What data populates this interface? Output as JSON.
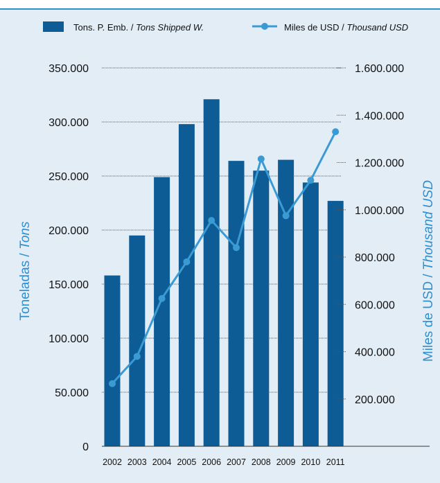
{
  "header": {
    "title_fragment": ""
  },
  "colors": {
    "bar": "#0d5c96",
    "line": "#3a9ad4",
    "axis_title": "#2e8fcf",
    "panel": "#e3edf6",
    "grid": "#555555",
    "text": "#111111"
  },
  "chart_data": {
    "type": "bar",
    "categories": [
      "2002",
      "2003",
      "2004",
      "2005",
      "2006",
      "2007",
      "2008",
      "2009",
      "2010",
      "2011"
    ],
    "series": [
      {
        "name": "Tons. P. Emb. / Tons Shipped W.",
        "name_main": "Tons. P. Emb. / ",
        "name_italic": "Tons Shipped W.",
        "type": "bar",
        "axis": "left",
        "values": [
          158000,
          195000,
          249000,
          298000,
          321000,
          264000,
          255000,
          265000,
          244000,
          227000
        ]
      },
      {
        "name": "Miles de USD / Thousand USD",
        "name_main": "Miles de USD / ",
        "name_italic": "Thousand USD",
        "type": "line",
        "axis": "right",
        "values": [
          265000,
          380000,
          625000,
          780000,
          955000,
          840000,
          1215000,
          975000,
          1125000,
          1330000
        ]
      }
    ],
    "left_axis": {
      "label_main": "Toneladas / ",
      "label_italic": "Tons",
      "ylim": [
        0,
        350000
      ],
      "ticks": [
        "0",
        "50.000",
        "100.000",
        "150.000",
        "200.000",
        "250.000",
        "300.000",
        "350.000"
      ],
      "tick_values": [
        0,
        50000,
        100000,
        150000,
        200000,
        250000,
        300000,
        350000
      ]
    },
    "right_axis": {
      "label_main": "Miles de USD / ",
      "label_italic": "Thousand USD",
      "ylim": [
        0,
        1600000
      ],
      "ticks": [
        "200.000",
        "400.000",
        "600.000",
        "800.000",
        "1.000.000",
        "1.200.000",
        "1.400.000",
        "1.600.000"
      ],
      "tick_values": [
        200000,
        400000,
        600000,
        800000,
        1000000,
        1200000,
        1400000,
        1600000
      ]
    },
    "grid": true,
    "legend_position": "top"
  }
}
